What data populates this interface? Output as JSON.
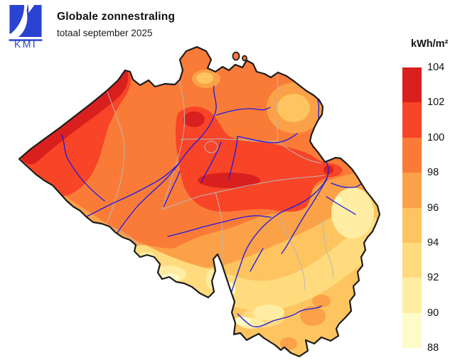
{
  "header": {
    "logo_text": "KMI",
    "title": "Globale zonnestraling",
    "subtitle": "totaal september 2025"
  },
  "legend": {
    "unit": "kWh/m²",
    "tick_labels": [
      "104",
      "102",
      "100",
      "98",
      "96",
      "94",
      "92",
      "90",
      "88"
    ],
    "segments": [
      {
        "label": "102–104",
        "color": "#da201e"
      },
      {
        "label": "100–102",
        "color": "#f84427"
      },
      {
        "label": "98–100",
        "color": "#fa7b38"
      },
      {
        "label": "96–98",
        "color": "#fba147"
      },
      {
        "label": "94–96",
        "color": "#fdc460"
      },
      {
        "label": "92–94",
        "color": "#ffdb7e"
      },
      {
        "label": "90–92",
        "color": "#ffeda3"
      },
      {
        "label": "88–90",
        "color": "#fffbc8"
      }
    ]
  },
  "map": {
    "colors": {
      "country_border": "#1c1c1c",
      "province_border": "#b8b8b8",
      "river": "#1a1ae8",
      "logo_blue": "#2a43d2",
      "background": "#ffffff"
    }
  }
}
